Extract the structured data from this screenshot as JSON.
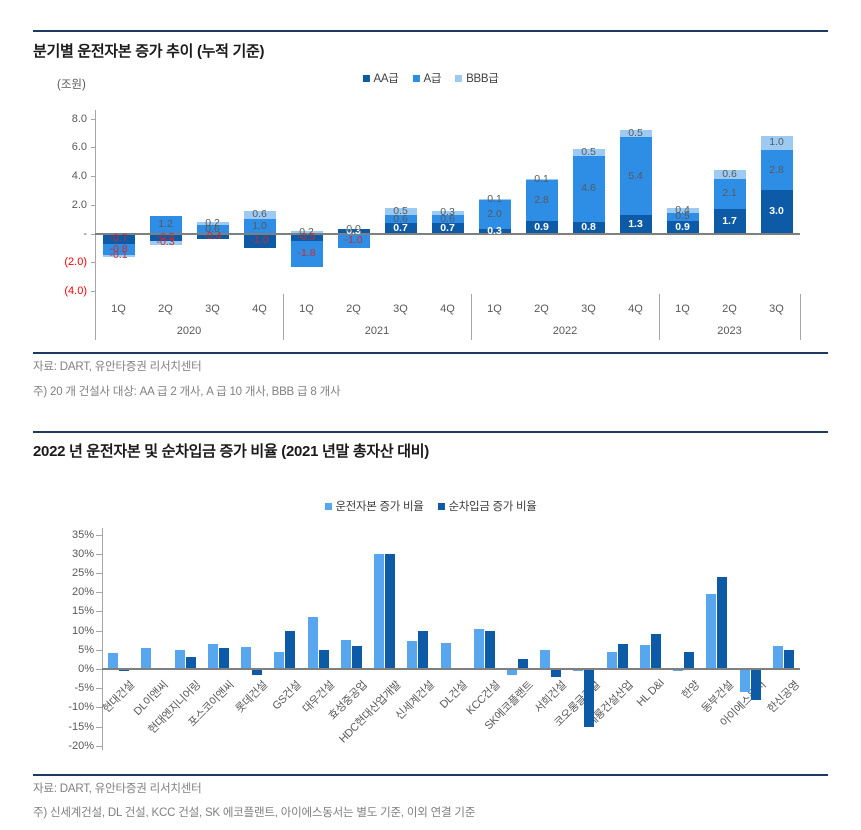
{
  "section1": {
    "title": "분기별 운전자본 증가 추이 (누적 기준)",
    "source": "자료: DART, 유안타증권 리서치센터",
    "note": "주) 20 개 건설사 대상: AA 급 2 개사, A 급 10 개사, BBB 급 8 개사"
  },
  "section2": {
    "title": "2022 년 운전자본 및 순차입금 증가 비율 (2021 년말 총자산 대비)",
    "source": "자료: DART, 유안타증권 리서치센터",
    "note": "주) 신세계건설, DL 건설, KCC 건설, SK 에코플랜트, 아이에스동서는 별도 기준, 이외 연결 기준"
  },
  "colors": {
    "rule": "#1f3a63",
    "axis_text": "#595959",
    "axis_negative_text": "#ff0000",
    "label_positive_text": "#595959",
    "label_negative_text": "#cf2a2a",
    "label_aa_text": "#ffffff",
    "axis_line": "#a6a6a6",
    "zero_line": "#7f7f7f",
    "legend_text": "#404040"
  },
  "chart_data": [
    {
      "type": "bar",
      "subtype": "stacked",
      "title": "분기별 운전자본 증가 추이 (누적 기준)",
      "unit_label": "(조원)",
      "legend_position": "top",
      "grid": false,
      "ylim": [
        -4.6,
        8
      ],
      "y_ticks": [
        {
          "label": "8.0",
          "value": 8,
          "negative": false
        },
        {
          "label": "6.0",
          "value": 6,
          "negative": false
        },
        {
          "label": "4.0",
          "value": 4,
          "negative": false
        },
        {
          "label": "2.0",
          "value": 2,
          "negative": false
        },
        {
          "label": "-",
          "value": 0,
          "negative": false
        },
        {
          "label": "(2.0)",
          "value": -2,
          "negative": true
        },
        {
          "label": "(4.0)",
          "value": -4,
          "negative": true
        }
      ],
      "categories": [
        "1Q",
        "2Q",
        "3Q",
        "4Q",
        "1Q",
        "2Q",
        "3Q",
        "4Q",
        "1Q",
        "2Q",
        "3Q",
        "4Q",
        "1Q",
        "2Q",
        "3Q"
      ],
      "groups": [
        {
          "label": "2020",
          "count": 4
        },
        {
          "label": "2021",
          "count": 4
        },
        {
          "label": "2022",
          "count": 4
        },
        {
          "label": "2023",
          "count": 3
        }
      ],
      "series": [
        {
          "name": "AA급",
          "color": "#0d5ba7",
          "values": [
            -0.7,
            -0.5,
            -0.4,
            -1.0,
            -0.5,
            0.3,
            0.7,
            0.7,
            0.3,
            0.9,
            0.8,
            1.3,
            0.9,
            1.7,
            3.0
          ]
        },
        {
          "name": "A급",
          "color": "#2e8de5",
          "values": [
            -0.8,
            1.2,
            0.6,
            1.0,
            -1.8,
            -1.0,
            0.6,
            0.6,
            2.0,
            2.8,
            4.6,
            5.4,
            0.5,
            2.1,
            2.8
          ]
        },
        {
          "name": "BBB급",
          "color": "#9ccaf2",
          "values": [
            -0.1,
            -0.3,
            0.2,
            0.6,
            0.2,
            0.0,
            0.5,
            0.3,
            0.1,
            0.1,
            0.5,
            0.5,
            0.4,
            0.6,
            1.0
          ]
        }
      ]
    },
    {
      "type": "bar",
      "subtype": "grouped",
      "title": "2022 년 운전자본 및 순차입금 증가 비율 (2021 년말 총자산 대비)",
      "legend_position": "top",
      "grid": false,
      "ylim": [
        -20,
        35
      ],
      "y_tick_step": 5,
      "y_ticks": [
        {
          "label": "35%",
          "value": 35
        },
        {
          "label": "30%",
          "value": 30
        },
        {
          "label": "25%",
          "value": 25
        },
        {
          "label": "20%",
          "value": 20
        },
        {
          "label": "15%",
          "value": 15
        },
        {
          "label": "10%",
          "value": 10
        },
        {
          "label": "5%",
          "value": 5
        },
        {
          "label": "0%",
          "value": 0
        },
        {
          "label": "-5%",
          "value": -5
        },
        {
          "label": "-10%",
          "value": -10
        },
        {
          "label": "-15%",
          "value": -15
        },
        {
          "label": "-20%",
          "value": -20
        }
      ],
      "categories": [
        "현대건설",
        "DL이앤씨",
        "현대엔지니어링",
        "포스코이앤씨",
        "롯데건설",
        "GS건설",
        "대우건설",
        "효성중공업",
        "HDC현대산업개발",
        "신세계건설",
        "DL건설",
        "KCC건설",
        "SK에코플랜트",
        "서희건설",
        "코오롱글로벌",
        "계룡건설산업",
        "HL D&I",
        "한양",
        "동부건설",
        "아이에스동서",
        "한신공영"
      ],
      "series": [
        {
          "name": "운전자본 증가 비율",
          "color": "#58a6ee",
          "values": [
            4.1,
            5.5,
            5.0,
            6.6,
            5.6,
            4.3,
            13.5,
            7.6,
            30.0,
            7.3,
            6.7,
            10.5,
            -1.5,
            5.0,
            -0.5,
            4.5,
            6.2,
            -0.5,
            19.5,
            -6.0,
            6.0
          ]
        },
        {
          "name": "순차입금 증가 비율",
          "color": "#0d5ba7",
          "values": [
            -0.5,
            0.3,
            3.0,
            5.5,
            -1.5,
            10.0,
            5.0,
            6.0,
            30.0,
            10.0,
            0.0,
            10.0,
            2.5,
            -2.0,
            -15.0,
            6.5,
            9.0,
            4.5,
            24.0,
            -8.0,
            5.0
          ]
        }
      ]
    }
  ]
}
